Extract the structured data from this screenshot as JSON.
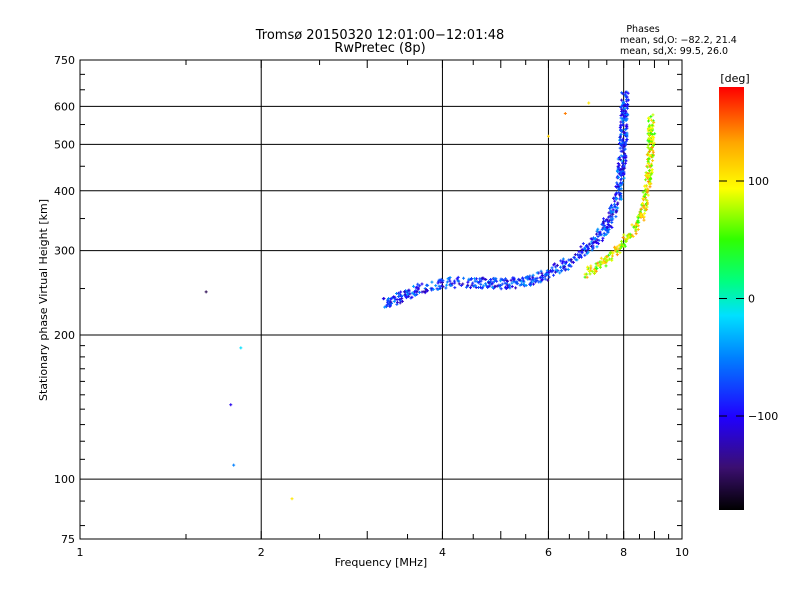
{
  "chart_data": {
    "type": "scatter",
    "title": "Tromsø 20150320 12:01:00−12:01:48",
    "subtitle": "RwPretec (8p)",
    "xlabel": "Frequency [MHz]",
    "ylabel": "Stationary phase Virtual Height [km]",
    "xscale": "log",
    "yscale": "log",
    "xlim": [
      1,
      10
    ],
    "ylim": [
      75,
      750
    ],
    "xticks": [
      "1",
      "2",
      "4",
      "6",
      "8",
      "10"
    ],
    "yticks": [
      "75",
      "100",
      "200",
      "300",
      "400",
      "500",
      "600",
      "750"
    ],
    "grid": true,
    "stats": {
      "heading": "Phases",
      "line1": "mean, sd,O: −82.2, 21.4",
      "line2": "mean, sd,X:  99.5, 26.0"
    },
    "colorbar": {
      "label": "[deg]",
      "range": [
        -180,
        180
      ],
      "ticks": [
        "100",
        "0",
        "−100"
      ],
      "tick_values": [
        100,
        0,
        -100
      ],
      "colors": [
        "#000000",
        "#3b0f70",
        "#2000ff",
        "#0080ff",
        "#00e0ff",
        "#00ff80",
        "#30ff00",
        "#ffff00",
        "#ffa500",
        "#ff0000"
      ]
    },
    "isolated_points": [
      {
        "x": 1.62,
        "y": 246,
        "phase": -150
      },
      {
        "x": 1.85,
        "y": 188,
        "phase": -20
      },
      {
        "x": 1.78,
        "y": 143,
        "phase": -105
      },
      {
        "x": 1.8,
        "y": 107,
        "phase": -60
      },
      {
        "x": 2.25,
        "y": 91,
        "phase": 110
      },
      {
        "x": 6.0,
        "y": 520,
        "phase": 120
      },
      {
        "x": 6.4,
        "y": 580,
        "phase": 150
      },
      {
        "x": 7.0,
        "y": 610,
        "phase": 110
      }
    ],
    "o_trace": [
      {
        "x": 3.2,
        "y": 232
      },
      {
        "x": 3.4,
        "y": 240
      },
      {
        "x": 3.6,
        "y": 248
      },
      {
        "x": 3.8,
        "y": 253
      },
      {
        "x": 4.0,
        "y": 256
      },
      {
        "x": 4.3,
        "y": 258
      },
      {
        "x": 4.6,
        "y": 257
      },
      {
        "x": 5.0,
        "y": 256
      },
      {
        "x": 5.3,
        "y": 257
      },
      {
        "x": 5.6,
        "y": 260
      },
      {
        "x": 6.0,
        "y": 268
      },
      {
        "x": 6.4,
        "y": 280
      },
      {
        "x": 6.8,
        "y": 295
      },
      {
        "x": 7.1,
        "y": 310
      },
      {
        "x": 7.4,
        "y": 330
      },
      {
        "x": 7.6,
        "y": 350
      },
      {
        "x": 7.8,
        "y": 380
      },
      {
        "x": 7.9,
        "y": 420
      },
      {
        "x": 7.97,
        "y": 480
      },
      {
        "x": 8.02,
        "y": 560
      },
      {
        "x": 8.05,
        "y": 640
      }
    ],
    "x_trace": [
      {
        "x": 6.9,
        "y": 268
      },
      {
        "x": 7.3,
        "y": 280
      },
      {
        "x": 7.6,
        "y": 292
      },
      {
        "x": 7.9,
        "y": 305
      },
      {
        "x": 8.2,
        "y": 322
      },
      {
        "x": 8.5,
        "y": 345
      },
      {
        "x": 8.7,
        "y": 380
      },
      {
        "x": 8.8,
        "y": 420
      },
      {
        "x": 8.85,
        "y": 470
      },
      {
        "x": 8.9,
        "y": 530
      },
      {
        "x": 8.9,
        "y": 570
      }
    ]
  }
}
